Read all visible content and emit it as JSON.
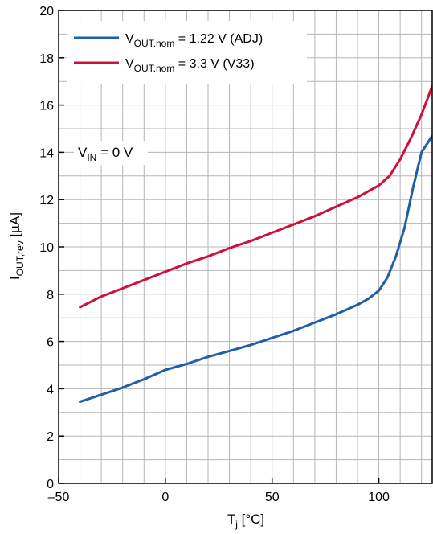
{
  "chart_data": {
    "type": "line",
    "xlabel": {
      "main": "T",
      "sub": "j",
      "rest": " [°C]"
    },
    "ylabel": {
      "main": "I",
      "sub": "OUT,rev",
      "rest": " [µA]"
    },
    "xlim": [
      -50,
      125
    ],
    "ylim": [
      0,
      20
    ],
    "x_ticks": [
      -50,
      0,
      50,
      100
    ],
    "x_tick_labels": [
      "–50",
      "0",
      "50",
      "100"
    ],
    "y_ticks": [
      0,
      2,
      4,
      6,
      8,
      10,
      12,
      14,
      16,
      18,
      20
    ],
    "y_tick_labels": [
      "0",
      "2",
      "4",
      "6",
      "8",
      "10",
      "12",
      "14",
      "16",
      "18",
      "20"
    ],
    "grid": true,
    "legend_position": "top-left",
    "annotation": {
      "main": "V",
      "sub": "IN",
      "rest": " = 0 V"
    },
    "series": [
      {
        "name_main": "V",
        "name_sub": "OUT.nom",
        "name_rest": " = 1.22 V (ADJ)",
        "color": "#1f5fa8",
        "x": [
          -40,
          -30,
          -20,
          -10,
          0,
          10,
          20,
          30,
          40,
          50,
          60,
          70,
          80,
          90,
          95,
          100,
          104,
          108,
          112,
          116,
          120,
          125
        ],
        "values": [
          3.45,
          3.75,
          4.05,
          4.4,
          4.8,
          5.05,
          5.35,
          5.6,
          5.85,
          6.15,
          6.45,
          6.8,
          7.15,
          7.55,
          7.8,
          8.15,
          8.7,
          9.6,
          10.8,
          12.5,
          14.0,
          14.7
        ]
      },
      {
        "name_main": "V",
        "name_sub": "OUT.nom",
        "name_rest": " = 3.3 V (V33)",
        "color": "#d0103a",
        "x": [
          -40,
          -30,
          -20,
          -10,
          0,
          10,
          20,
          30,
          40,
          50,
          60,
          70,
          80,
          90,
          100,
          105,
          110,
          115,
          120,
          125
        ],
        "values": [
          7.45,
          7.9,
          8.25,
          8.6,
          8.95,
          9.3,
          9.6,
          9.95,
          10.25,
          10.6,
          10.95,
          11.3,
          11.7,
          12.1,
          12.6,
          13.0,
          13.7,
          14.6,
          15.6,
          16.8
        ]
      }
    ]
  }
}
